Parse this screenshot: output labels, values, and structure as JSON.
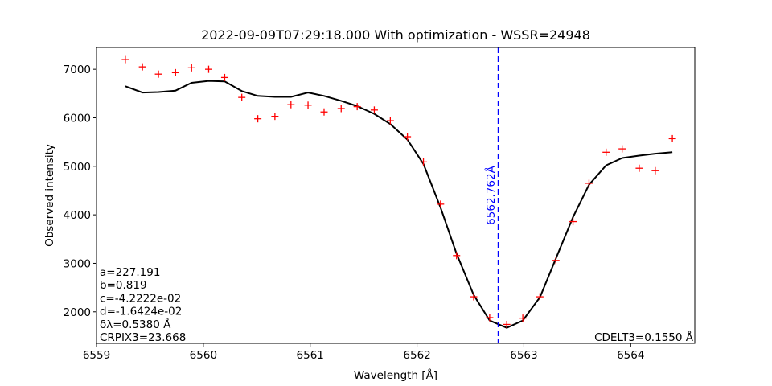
{
  "chart_data": {
    "type": "line",
    "title": "2022-09-09T07:29:18.000 With optimization - WSSR=24948",
    "xlabel": "Wavelength [Å]",
    "ylabel": "Observed intensity",
    "xlim": [
      6559.0,
      6564.6
    ],
    "ylim": [
      1350,
      7450
    ],
    "x_ticks": [
      6559,
      6560,
      6561,
      6562,
      6563,
      6564
    ],
    "y_ticks": [
      2000,
      3000,
      4000,
      5000,
      6000,
      7000
    ],
    "grid": false,
    "series": [
      {
        "style": "line",
        "color": "#000000",
        "x": [
          6559.27,
          6559.43,
          6559.58,
          6559.74,
          6559.89,
          6560.05,
          6560.2,
          6560.36,
          6560.51,
          6560.67,
          6560.82,
          6560.98,
          6561.13,
          6561.29,
          6561.44,
          6561.6,
          6561.75,
          6561.91,
          6562.06,
          6562.22,
          6562.37,
          6562.53,
          6562.68,
          6562.84,
          6562.99,
          6563.15,
          6563.3,
          6563.46,
          6563.61,
          6563.77,
          6563.92,
          6564.08,
          6564.23,
          6564.39
        ],
        "y": [
          6650,
          6520,
          6530,
          6560,
          6720,
          6760,
          6750,
          6550,
          6450,
          6430,
          6430,
          6520,
          6450,
          6350,
          6240,
          6080,
          5870,
          5550,
          5050,
          4150,
          3200,
          2350,
          1820,
          1670,
          1820,
          2300,
          3100,
          3950,
          4620,
          5020,
          5170,
          5220,
          5260,
          5290
        ]
      },
      {
        "style": "markers",
        "marker": "+",
        "color": "#ff0000",
        "x": [
          6559.27,
          6559.43,
          6559.58,
          6559.74,
          6559.89,
          6560.05,
          6560.2,
          6560.36,
          6560.51,
          6560.67,
          6560.82,
          6560.98,
          6561.13,
          6561.29,
          6561.44,
          6561.6,
          6561.75,
          6561.91,
          6562.06,
          6562.22,
          6562.37,
          6562.53,
          6562.68,
          6562.84,
          6562.99,
          6563.15,
          6563.3,
          6563.46,
          6563.61,
          6563.77,
          6563.92,
          6564.08,
          6564.23,
          6564.39
        ],
        "y": [
          7200,
          7050,
          6900,
          6930,
          7030,
          7000,
          6830,
          6420,
          5980,
          6030,
          6270,
          6260,
          6120,
          6190,
          6230,
          6160,
          5940,
          5610,
          5090,
          4220,
          3160,
          2310,
          1880,
          1740,
          1870,
          2310,
          3060,
          3860,
          4650,
          5290,
          5360,
          4960,
          4910,
          5570
        ]
      }
    ],
    "vline": {
      "x": 6562.762,
      "label": "6562.762Å",
      "color": "#0000ff",
      "style": "dashed"
    },
    "annotations": {
      "left_lines": [
        "a=227.191",
        "b=0.819",
        "c=-4.2222e-02",
        "d=-1.6424e-02",
        "δλ=0.5380 Å",
        "CRPIX3=23.668"
      ],
      "right": "CDELT3=0.1550 Å"
    }
  }
}
